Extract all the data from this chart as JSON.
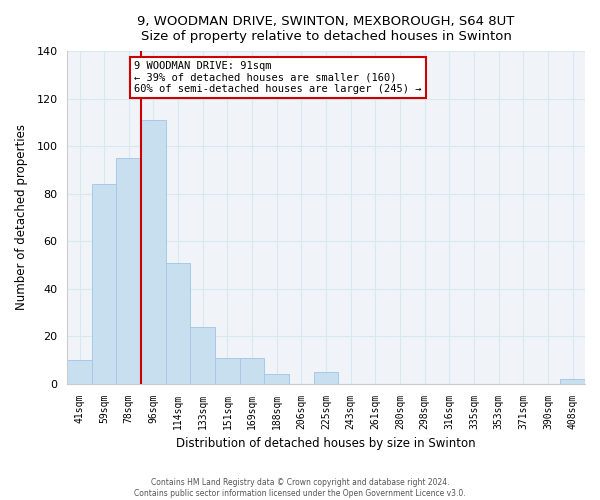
{
  "title": "9, WOODMAN DRIVE, SWINTON, MEXBOROUGH, S64 8UT",
  "subtitle": "Size of property relative to detached houses in Swinton",
  "xlabel": "Distribution of detached houses by size in Swinton",
  "ylabel": "Number of detached properties",
  "bar_color": "#c8dff0",
  "bar_edge_color": "#a8c8e8",
  "categories": [
    "41sqm",
    "59sqm",
    "78sqm",
    "96sqm",
    "114sqm",
    "133sqm",
    "151sqm",
    "169sqm",
    "188sqm",
    "206sqm",
    "225sqm",
    "243sqm",
    "261sqm",
    "280sqm",
    "298sqm",
    "316sqm",
    "335sqm",
    "353sqm",
    "371sqm",
    "390sqm",
    "408sqm"
  ],
  "values": [
    10,
    84,
    95,
    111,
    51,
    24,
    11,
    11,
    4,
    0,
    5,
    0,
    0,
    0,
    0,
    0,
    0,
    0,
    0,
    0,
    2
  ],
  "ylim": [
    0,
    140
  ],
  "yticks": [
    0,
    20,
    40,
    60,
    80,
    100,
    120,
    140
  ],
  "property_line_idx": 3,
  "annotation_text_line1": "9 WOODMAN DRIVE: 91sqm",
  "annotation_text_line2": "← 39% of detached houses are smaller (160)",
  "annotation_text_line3": "60% of semi-detached houses are larger (245) →",
  "annotation_box_color": "#ffffff",
  "annotation_box_edge_color": "#cc0000",
  "property_line_color": "#cc0000",
  "footer1": "Contains HM Land Registry data © Crown copyright and database right 2024.",
  "footer2": "Contains public sector information licensed under the Open Government Licence v3.0.",
  "grid_color": "#d8e8f0",
  "bg_color": "#f0f4f8"
}
